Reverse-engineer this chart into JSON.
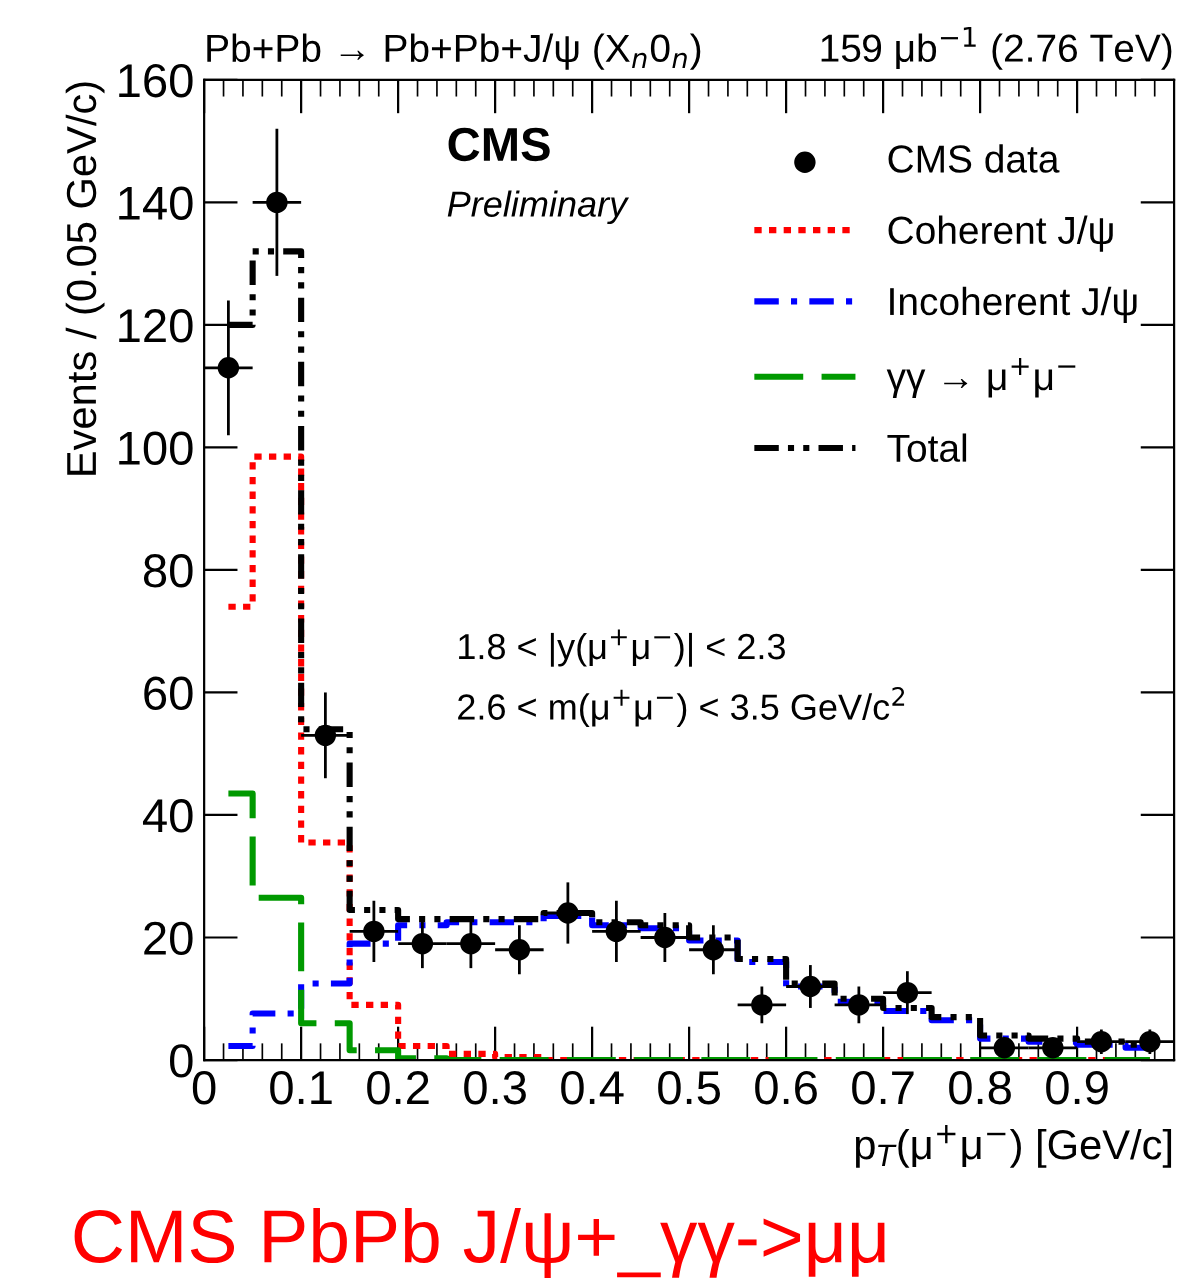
{
  "chart_data": {
    "type": "step",
    "title": "Pb+Pb → Pb+Pb+J/ψ (X$_{n}$0$_{n}$)",
    "subtitle": "159 μb$^{−1}$ (2.76 TeV)",
    "xlabel": "p$_{T}$(μ$^{+}$μ$^{−}$) [GeV/c]",
    "ylabel": "Events / (0.05 GeV/c)",
    "annotations": [
      "CMS",
      "Preliminary",
      "1.8 < |y(μ$^{+}$μ$^{−}$)| < 2.3",
      "2.6 < m(μ$^{+}$μ$^{−}$) < 3.5 GeV/c$^{2}$",
      "CMS PbPb J/ψ+_γγ->μμ"
    ],
    "x": [
      0.025,
      0.075,
      0.125,
      0.175,
      0.225,
      0.275,
      0.325,
      0.375,
      0.425,
      0.475,
      0.525,
      0.575,
      0.625,
      0.675,
      0.725,
      0.775,
      0.825,
      0.875,
      0.925,
      0.975
    ],
    "series": [
      {
        "name": "CMS data",
        "type": "scatter",
        "color": "#000000",
        "marker": "circle",
        "values": [
          113,
          140,
          53,
          21,
          19,
          19,
          18,
          24,
          21,
          20,
          18,
          9,
          12,
          9,
          11,
          null,
          2,
          2,
          3,
          3
        ],
        "errors": [
          11,
          12,
          7,
          5,
          4,
          4,
          4,
          5,
          5,
          4,
          4,
          3,
          3.5,
          3,
          3.5,
          null,
          1.5,
          1.5,
          2,
          2
        ],
        "xerrors": [
          0.025,
          0.025,
          0.025,
          0.025,
          0.025,
          0.025,
          0.025,
          0.025,
          0.025,
          0.025,
          0.025,
          0.025,
          0.025,
          0.025,
          0.025,
          null,
          0.025,
          0.025,
          0.025,
          0.025
        ]
      },
      {
        "name": "Coherent J/ψ",
        "color": "#ff0000",
        "line_style": "dotted",
        "values": [
          74,
          98.5,
          35.5,
          9,
          2.3,
          1,
          0.5,
          0,
          0,
          0,
          0,
          0,
          0,
          0,
          0,
          0,
          0,
          0,
          0,
          0
        ]
      },
      {
        "name": "Incoherent J/ψ",
        "color": "#0000ff",
        "line_style": "dashdot",
        "values": [
          2.3,
          7.6,
          12.5,
          19,
          22,
          22.5,
          22.5,
          23.5,
          22,
          21.5,
          19.5,
          16,
          12,
          9.5,
          8,
          6.5,
          3.5,
          3,
          2.5,
          2
        ]
      },
      {
        "name": "γγ → μ$^{+}$μ$^{−}$",
        "color": "#009900",
        "line_style": "dashed",
        "values": [
          43.5,
          26.5,
          6,
          1.6,
          0.3,
          0,
          0,
          0,
          0,
          0,
          0,
          0,
          0,
          0,
          0,
          0,
          0,
          0,
          0,
          0
        ]
      },
      {
        "name": "Total",
        "color": "#000000",
        "line_style": "dashdotdot",
        "values": [
          120,
          132,
          54,
          24.5,
          23,
          23,
          23,
          24,
          22.5,
          22,
          20,
          16.5,
          12.5,
          10,
          8.5,
          7,
          4,
          3.5,
          3,
          2.5
        ]
      }
    ],
    "xlim": [
      0,
      1.0
    ],
    "ylim": [
      0,
      160
    ],
    "xticks": [
      0,
      0.1,
      0.2,
      0.3,
      0.4,
      0.5,
      0.6,
      0.7,
      0.8,
      0.9
    ],
    "yticks": [
      0,
      20,
      40,
      60,
      80,
      100,
      120,
      140,
      160
    ],
    "grid": false,
    "legend": "top right"
  }
}
